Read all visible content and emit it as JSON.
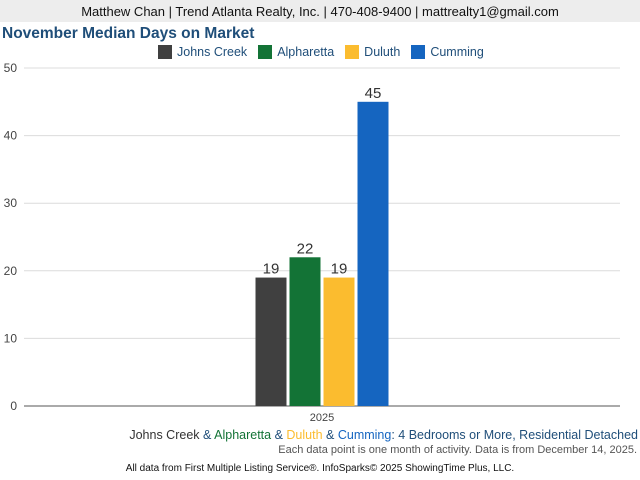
{
  "header": {
    "contact": "Matthew Chan | Trend Atlanta Realty, Inc. | 470-408-9400 | mattrealty1@gmail.com"
  },
  "chart_data": {
    "type": "bar",
    "title": "November Median Days on Market",
    "categories": [
      "2025"
    ],
    "series": [
      {
        "name": "Johns Creek",
        "values": [
          19
        ],
        "color": "#404040"
      },
      {
        "name": "Alpharetta",
        "values": [
          22
        ],
        "color": "#137336"
      },
      {
        "name": "Duluth",
        "values": [
          19
        ],
        "color": "#fbbc2f"
      },
      {
        "name": "Cumming",
        "values": [
          45
        ],
        "color": "#1565c0"
      }
    ],
    "ylim": [
      0,
      50
    ],
    "yticks": [
      0,
      10,
      20,
      30,
      40,
      50
    ],
    "grid": true,
    "legend_position": "top"
  },
  "subtitle": {
    "parts": [
      {
        "text": "Johns Creek",
        "color": "#333333"
      },
      {
        "text": " & ",
        "color": "#1f4e79"
      },
      {
        "text": "Alpharetta",
        "color": "#137336"
      },
      {
        "text": " & ",
        "color": "#1f4e79"
      },
      {
        "text": "Duluth",
        "color": "#fbbc2f"
      },
      {
        "text": " & ",
        "color": "#1f4e79"
      },
      {
        "text": "Cumming",
        "color": "#1565c0"
      },
      {
        "text": ": 4 Bedrooms or More, Residential Detached",
        "color": "#1f4e79"
      }
    ]
  },
  "note": "Each data point is one month of activity. Data is from December 14, 2025.",
  "credit": "All data from First Multiple Listing Service®. InfoSparks© 2025 ShowingTime Plus, LLC."
}
